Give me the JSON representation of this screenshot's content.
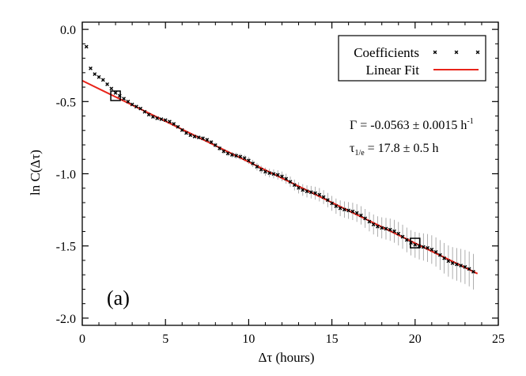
{
  "chart_data": {
    "type": "scatter",
    "panel_label": "(a)",
    "xlabel": "Δτ (hours)",
    "ylabel": "ln C(Δτ)",
    "xlim": [
      0,
      25
    ],
    "ylim": [
      -2.05,
      0.05
    ],
    "x_ticks": [
      0,
      5,
      10,
      15,
      20,
      25
    ],
    "y_ticks": [
      0.0,
      -0.5,
      -1.0,
      -1.5,
      -2.0
    ],
    "x_tick_labels": [
      "0",
      "5",
      "10",
      "15",
      "20",
      "25"
    ],
    "y_tick_labels": [
      "0.0",
      "-0.5",
      "-1.0",
      "-1.5",
      "-2.0"
    ],
    "grid": false,
    "legend_position": "top-right",
    "legend": {
      "coefficients_label": "Coefficients",
      "fit_label": "Linear Fit"
    },
    "annotations": {
      "gamma_text": "Γ = -0.0563 ± 0.0015 h",
      "gamma_sup": "-1",
      "tau_symbol": "τ",
      "tau_sub": "1/e",
      "tau_text": " = 17.8 ± 0.5 h"
    },
    "series": [
      {
        "name": "Coefficients",
        "marker": "x",
        "color": "#000000",
        "x_start": 0.25,
        "x_step": 0.25,
        "count": 94,
        "early_values": [
          -0.12,
          -0.27,
          -0.31,
          -0.33,
          -0.35,
          -0.38,
          -0.41,
          -0.44,
          -0.46,
          -0.48,
          -0.5,
          -0.52,
          -0.535
        ],
        "fit_follow_from_index": 13,
        "error_bar_start": 0.0018,
        "error_bar_growth": 0.0022
      },
      {
        "name": "Linear Fit",
        "type": "line",
        "color": "#e8241a",
        "x": [
          0,
          23.75
        ],
        "y": [
          -0.355,
          -1.692
        ]
      }
    ],
    "highlighted_points": [
      {
        "x": 2.0,
        "y": -0.46
      },
      {
        "x": 20.0,
        "y": -1.48
      }
    ]
  }
}
